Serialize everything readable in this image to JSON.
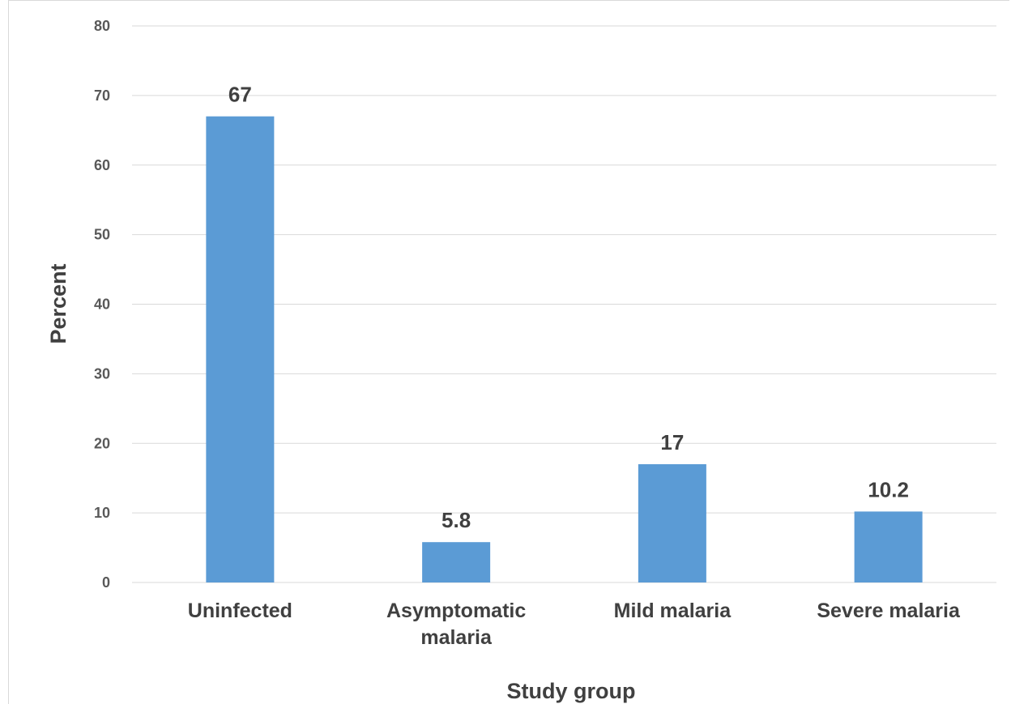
{
  "chart_data": {
    "type": "bar",
    "categories": [
      "Uninfected",
      "Asymptomatic malaria",
      "Mild malaria",
      "Severe malaria"
    ],
    "category_lines": [
      [
        "Uninfected"
      ],
      [
        "Asymptomatic",
        "malaria"
      ],
      [
        "Mild malaria"
      ],
      [
        "Severe malaria"
      ]
    ],
    "values": [
      67,
      5.8,
      17,
      10.2
    ],
    "data_labels": [
      "67",
      "5.8",
      "17",
      "10.2"
    ],
    "title": "",
    "xlabel": "Study group",
    "ylabel": "Percent",
    "ylim": [
      0,
      80
    ],
    "yticks": [
      0,
      10,
      20,
      30,
      40,
      50,
      60,
      70,
      80
    ],
    "grid": true,
    "legend": "none",
    "bar_color": "#5b9bd5"
  }
}
